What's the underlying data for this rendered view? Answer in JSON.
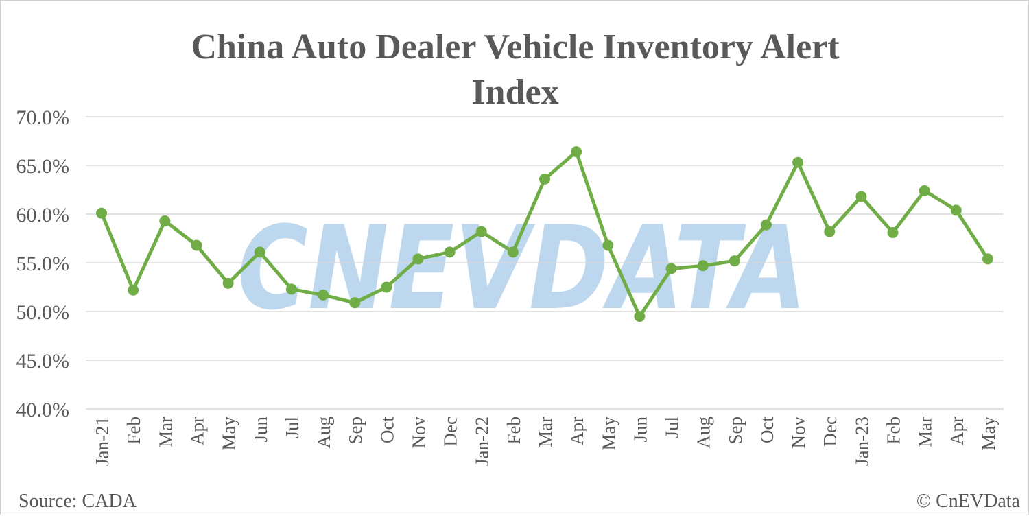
{
  "chart_data": {
    "type": "line",
    "title": "China Auto Dealer Vehicle Inventory Alert Index",
    "title_lines": [
      "China Auto Dealer Vehicle Inventory Alert",
      "Index"
    ],
    "categories": [
      "Jan-21",
      "Feb",
      "Mar",
      "Apr",
      "May",
      "Jun",
      "Jul",
      "Aug",
      "Sep",
      "Oct",
      "Nov",
      "Dec",
      "Jan-22",
      "Feb",
      "Mar",
      "Apr",
      "May",
      "Jun",
      "Jul",
      "Aug",
      "Sep",
      "Oct",
      "Nov",
      "Dec",
      "Jan-23",
      "Feb",
      "Mar",
      "Apr",
      "May"
    ],
    "series": [
      {
        "values": [
          60.1,
          52.2,
          59.3,
          56.8,
          52.9,
          56.1,
          52.3,
          51.7,
          50.9,
          52.5,
          55.4,
          56.1,
          58.2,
          56.1,
          63.6,
          66.4,
          56.8,
          49.5,
          54.4,
          54.7,
          55.2,
          58.9,
          65.3,
          58.2,
          61.8,
          58.1,
          62.4,
          60.4,
          55.4
        ],
        "color": "#70ad47"
      }
    ],
    "ylim": [
      40,
      70
    ],
    "yticks": [
      "40.0%",
      "45.0%",
      "50.0%",
      "55.0%",
      "60.0%",
      "65.0%",
      "70.0%"
    ],
    "grid": true,
    "legend": "none"
  },
  "footer": {
    "source": "Source: CADA",
    "copyright": "© CnEVData"
  },
  "watermark": {
    "text": "CNEVDATA",
    "color": "#bdd7ee"
  }
}
